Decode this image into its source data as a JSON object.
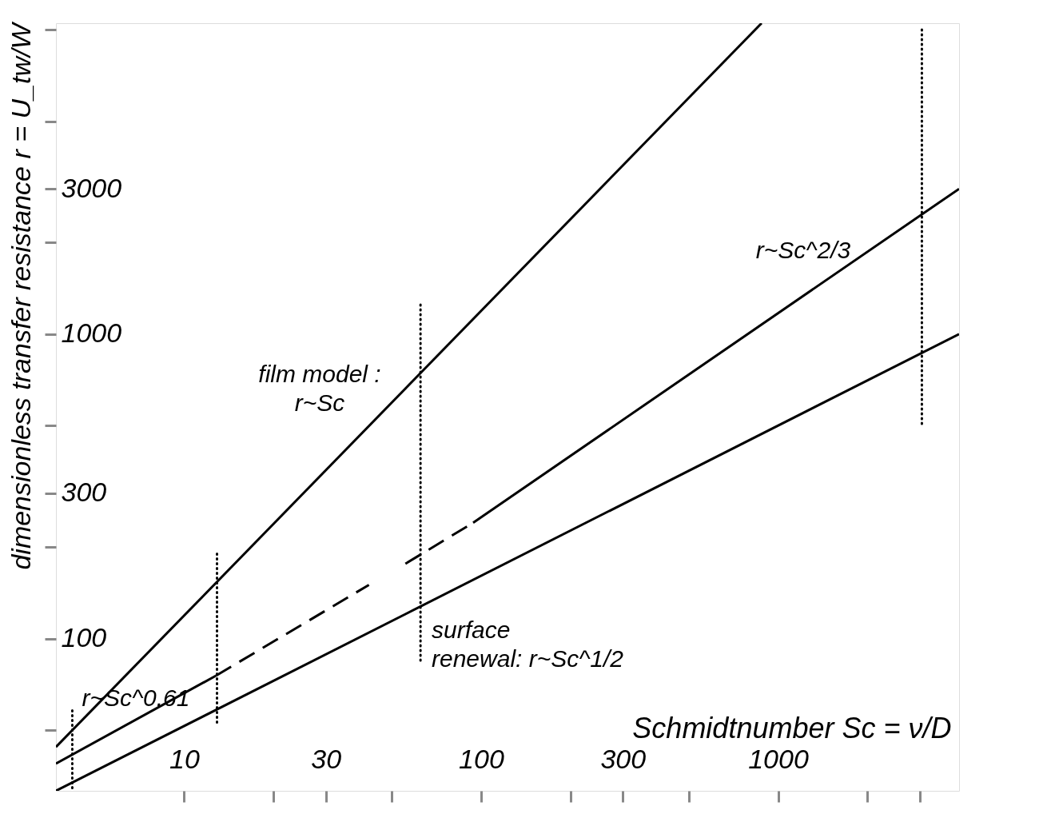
{
  "chart_data": {
    "type": "line",
    "xlabel": "Schmidtnumber Sc = ν/D",
    "ylabel": "dimensionless transfer resistance  r = U_tw/W",
    "log": "xy",
    "grid": false,
    "xlim": [
      3.7,
      4070
    ],
    "ylim": [
      31.6,
      10500
    ],
    "xticks": [
      10,
      {
        "value": 20,
        "label": null
      },
      30,
      {
        "value": 50,
        "label": null
      },
      100,
      {
        "value": 200,
        "label": null
      },
      300,
      {
        "value": 500,
        "label": null
      },
      1000,
      {
        "value": 2000,
        "label": null
      },
      {
        "value": 3000,
        "label": null
      }
    ],
    "yticks": [
      {
        "value": 50,
        "label": null
      },
      100,
      {
        "value": 200,
        "label": null
      },
      300,
      {
        "value": 500,
        "label": null
      },
      1000,
      {
        "value": 2000,
        "label": null
      },
      3000,
      {
        "value": 5000,
        "label": null
      },
      {
        "value": 10000,
        "label": null
      }
    ],
    "series": [
      {
        "color": "#000000",
        "line_style": "solid",
        "x": [
          3.7,
          880
        ],
        "values": [
          44,
          10500
        ]
      },
      {
        "color": "#000000",
        "line_style": "solid",
        "x": [
          3.7,
          12.8
        ],
        "values": [
          38.8,
          75.5
        ]
      },
      {
        "color": "#000000",
        "line_style": "dashed",
        "x": [
          12.8,
          41.9
        ],
        "values": [
          75.5,
          150
        ]
      },
      {
        "color": "#000000",
        "line_style": "dashed",
        "x": [
          55.6,
          94
        ],
        "values": [
          176,
          240
        ]
      },
      {
        "color": "#000000",
        "line_style": "solid",
        "x": [
          94,
          4070
        ],
        "values": [
          240,
          3000
        ]
      },
      {
        "color": "#000000",
        "line_style": "solid",
        "x": [
          3.7,
          4070
        ],
        "values": [
          31.6,
          1000
        ]
      },
      {
        "color": "#000000",
        "line_style": "dotted",
        "x": [
          4.2,
          4.2
        ],
        "values": [
          58,
          31.6
        ]
      },
      {
        "color": "#000000",
        "line_style": "dotted",
        "x": [
          12.9,
          12.9
        ],
        "values": [
          190,
          53
        ]
      },
      {
        "color": "#000000",
        "line_style": "dotted",
        "x": [
          62.5,
          62.5
        ],
        "values": [
          1250,
          83
        ]
      },
      {
        "color": "#000000",
        "line_style": "dotted",
        "x": [
          3050,
          3050
        ],
        "values": [
          10000,
          500
        ]
      }
    ],
    "annotations": [
      "film model :\nr~Sc",
      "r~Sc^2/3",
      "surface\nrenewal: r~Sc^1/2",
      "r~Sc^0.61"
    ]
  }
}
